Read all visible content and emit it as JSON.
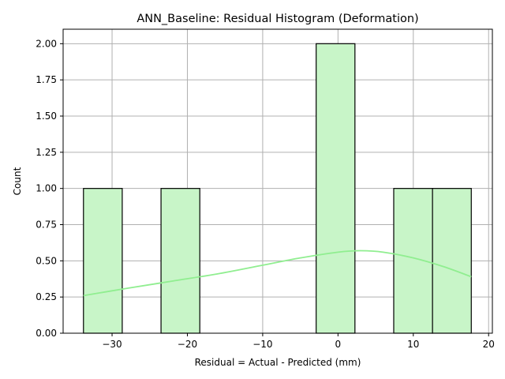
{
  "chart_data": {
    "type": "bar",
    "title": "ANN_Baseline: Residual Histogram (Deformation)",
    "xlabel": "Residual = Actual - Predicted (mm)",
    "ylabel": "Count",
    "xlim": [
      -36.5,
      20.5
    ],
    "ylim": [
      0,
      2.1
    ],
    "grid": true,
    "bin_edges": [
      -33.8,
      -28.65,
      -23.5,
      -18.35,
      -13.2,
      -8.05,
      -2.9,
      2.25,
      7.4,
      12.55,
      17.7
    ],
    "counts": [
      1,
      0,
      1,
      0,
      0,
      0,
      2,
      0,
      1,
      1
    ],
    "xticks": [
      -30,
      -20,
      -10,
      0,
      10,
      20
    ],
    "xtick_labels": [
      "−30",
      "−20",
      "−10",
      "0",
      "10",
      "20"
    ],
    "yticks": [
      0,
      0.25,
      0.5,
      0.75,
      1.0,
      1.25,
      1.5,
      1.75,
      2.0
    ],
    "ytick_labels": [
      "0.00",
      "0.25",
      "0.50",
      "0.75",
      "1.00",
      "1.25",
      "1.50",
      "1.75",
      "2.00"
    ],
    "kde": {
      "x": [
        -33.8,
        -28,
        -22,
        -16,
        -10,
        -5,
        0,
        3,
        6,
        10,
        14,
        17.7
      ],
      "y": [
        0.26,
        0.31,
        0.36,
        0.41,
        0.47,
        0.52,
        0.56,
        0.57,
        0.56,
        0.52,
        0.46,
        0.39
      ]
    },
    "colors": {
      "bar_fill": "#c8f5c8",
      "bar_edge": "#000000",
      "kde_line": "#90ee90",
      "grid": "#b0b0b0"
    }
  }
}
